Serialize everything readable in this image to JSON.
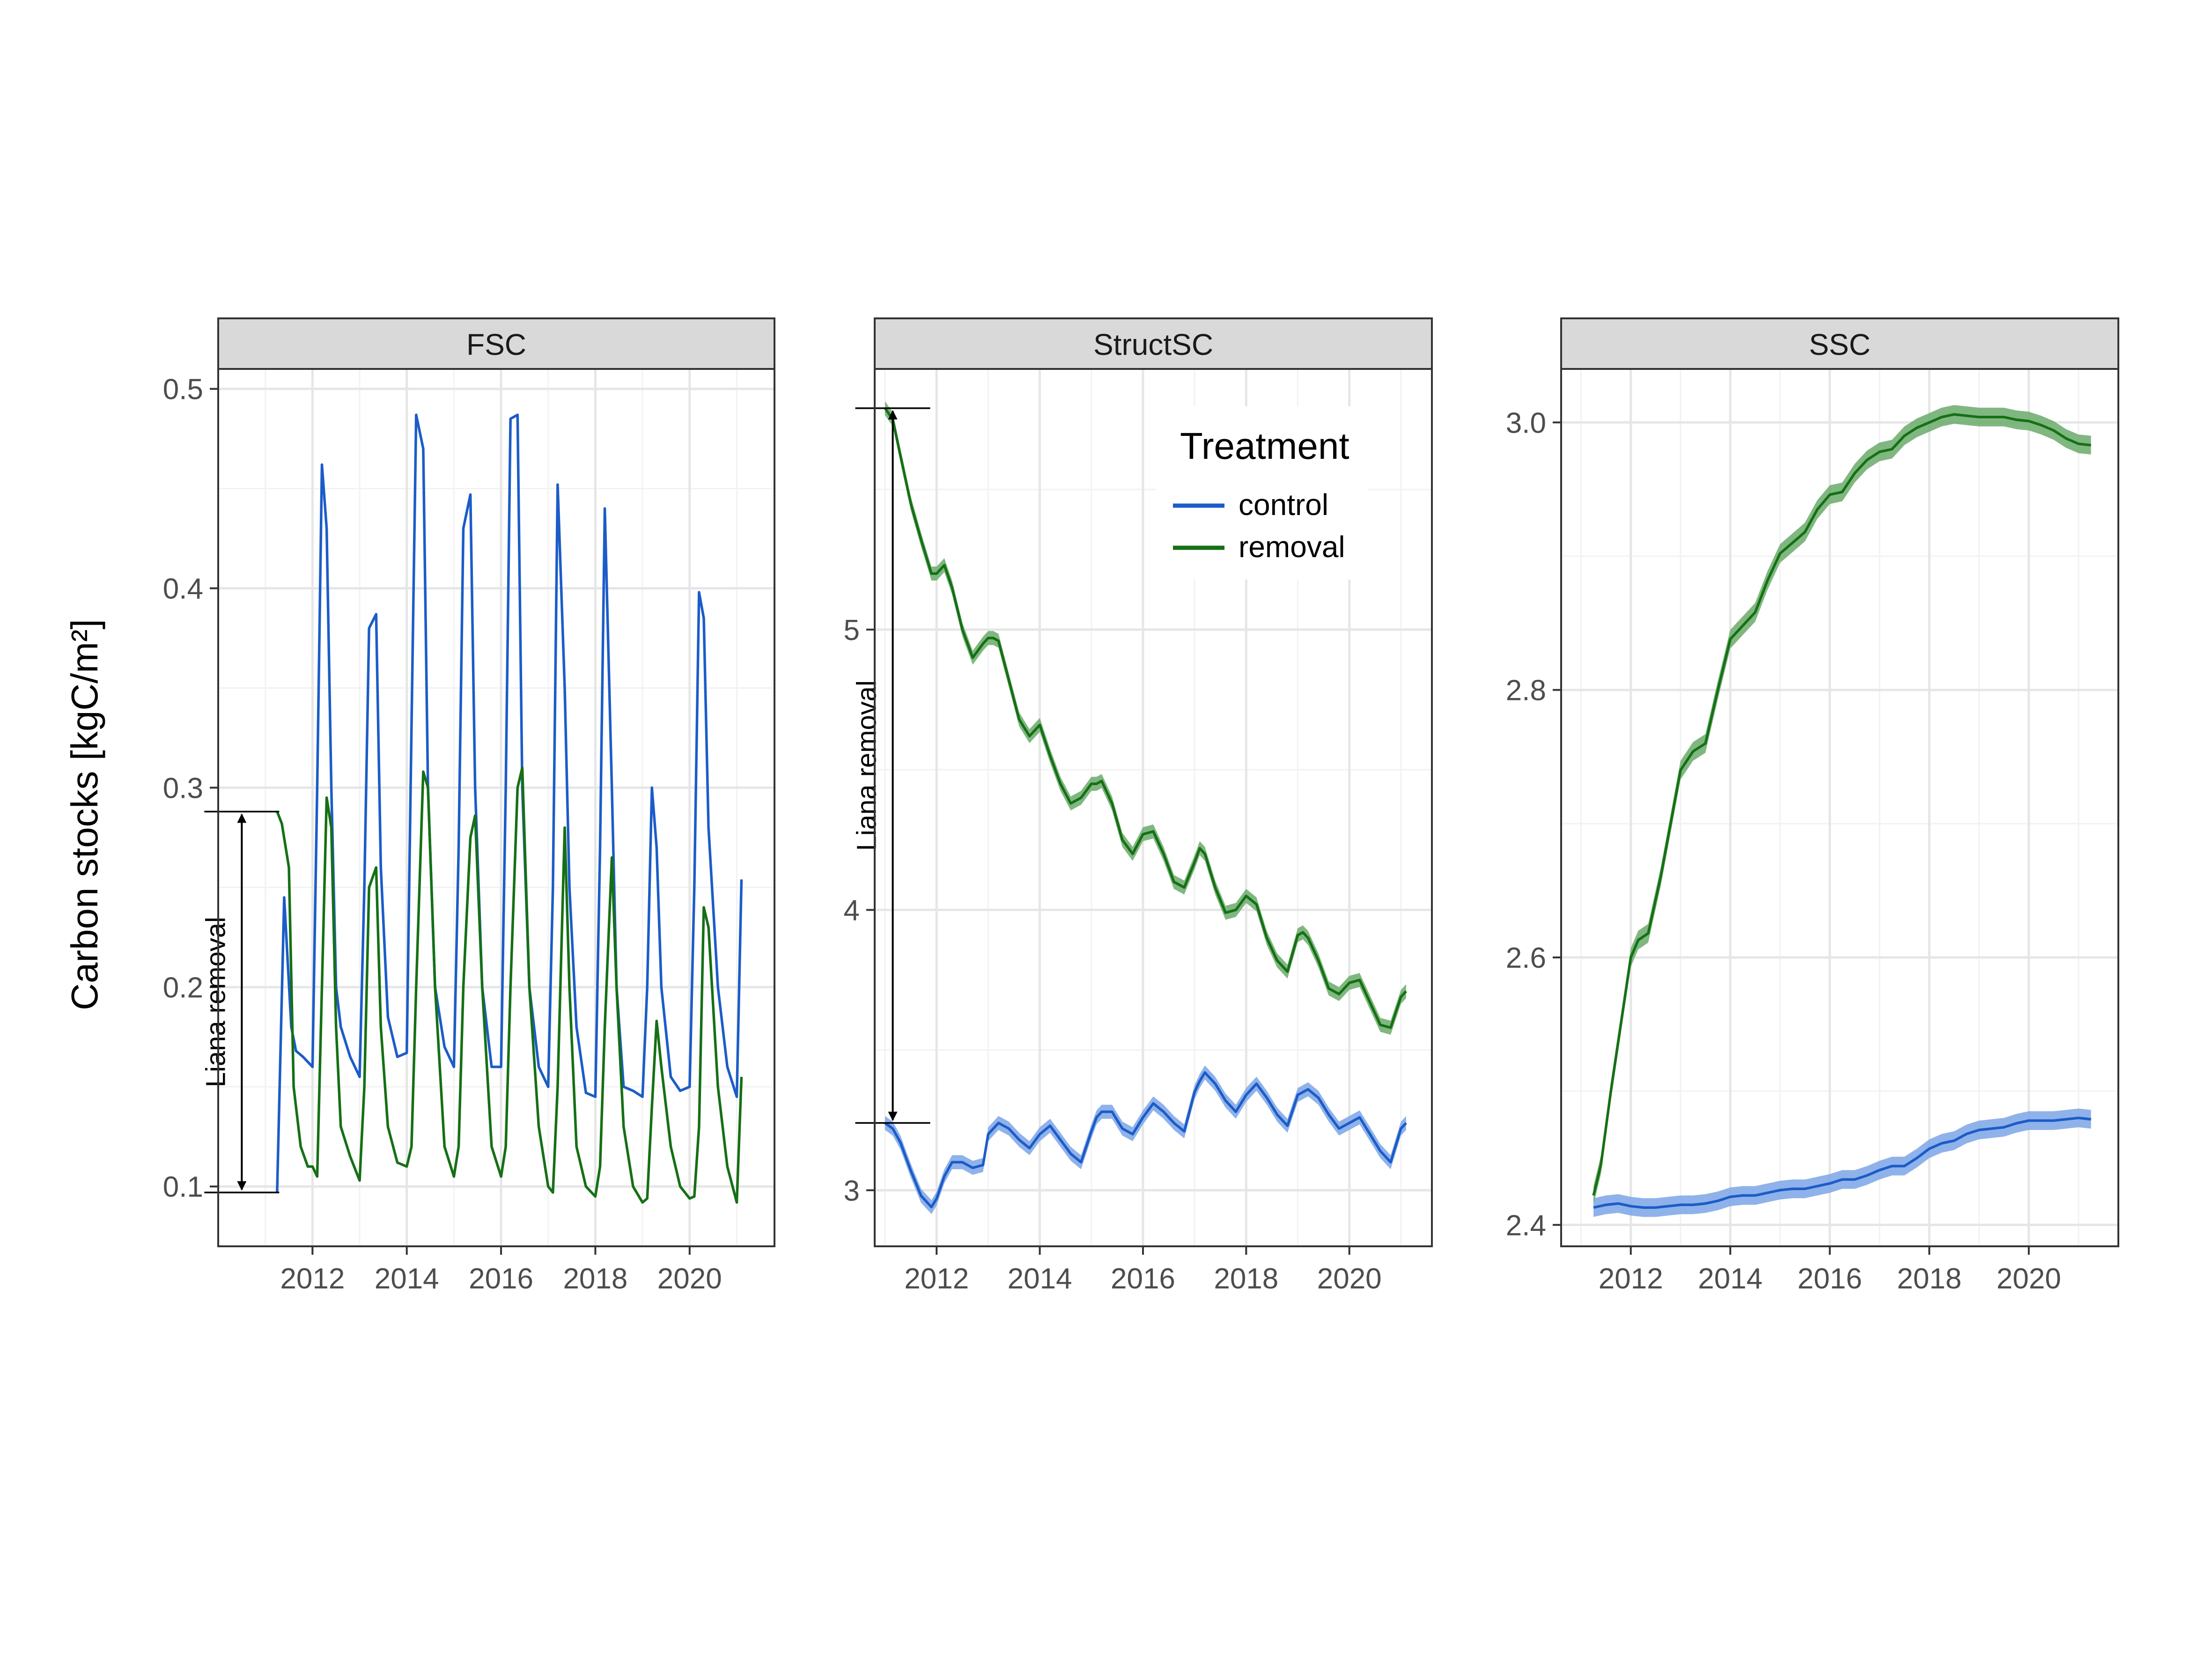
{
  "figure": {
    "ylabel": "Carbon stocks [kgC/m²]",
    "colors": {
      "control": "#1c5cc8",
      "removal": "#157015",
      "control_band": "#7ba5e6",
      "removal_band": "#6aaa6a"
    }
  },
  "legend": {
    "title": "Treatment",
    "items": [
      {
        "label": "control",
        "color": "#1c5cc8"
      },
      {
        "label": "removal",
        "color": "#157015"
      }
    ]
  },
  "chart_data": [
    {
      "type": "line",
      "strip": "FSC",
      "xlim": [
        2010.0,
        2021.8
      ],
      "ylim": [
        0.07,
        0.51
      ],
      "xticks": [
        2012,
        2014,
        2016,
        2018,
        2020
      ],
      "yticks": [
        0.1,
        0.2,
        0.3,
        0.4,
        0.5
      ],
      "ytick_labels": [
        "0.1",
        "0.2",
        "0.3",
        "0.4",
        "0.5"
      ],
      "annotation": {
        "text": "Liana removal",
        "x": 2010.5,
        "from": 0.097,
        "to": 0.288
      },
      "series": [
        {
          "name": "control",
          "x": [
            2011.25,
            2011.4,
            2011.55,
            2011.65,
            2011.8,
            2012.0,
            2012.1,
            2012.2,
            2012.3,
            2012.4,
            2012.5,
            2012.6,
            2012.8,
            2013.0,
            2013.1,
            2013.2,
            2013.35,
            2013.45,
            2013.6,
            2013.8,
            2014.0,
            2014.1,
            2014.2,
            2014.35,
            2014.45,
            2014.6,
            2014.8,
            2015.0,
            2015.1,
            2015.2,
            2015.35,
            2015.45,
            2015.6,
            2015.8,
            2016.0,
            2016.1,
            2016.2,
            2016.35,
            2016.45,
            2016.6,
            2016.8,
            2017.0,
            2017.1,
            2017.2,
            2017.35,
            2017.45,
            2017.6,
            2017.8,
            2018.0,
            2018.1,
            2018.2,
            2018.35,
            2018.45,
            2018.6,
            2018.8,
            2019.0,
            2019.1,
            2019.2,
            2019.3,
            2019.4,
            2019.6,
            2019.8,
            2020.0,
            2020.1,
            2020.2,
            2020.3,
            2020.4,
            2020.6,
            2020.8,
            2021.0,
            2021.1
          ],
          "values": [
            0.097,
            0.245,
            0.18,
            0.168,
            0.165,
            0.16,
            0.3,
            0.462,
            0.43,
            0.3,
            0.2,
            0.18,
            0.165,
            0.155,
            0.25,
            0.38,
            0.387,
            0.26,
            0.185,
            0.165,
            0.167,
            0.33,
            0.487,
            0.47,
            0.3,
            0.2,
            0.17,
            0.16,
            0.27,
            0.43,
            0.447,
            0.3,
            0.2,
            0.16,
            0.16,
            0.3,
            0.485,
            0.487,
            0.3,
            0.2,
            0.16,
            0.15,
            0.25,
            0.452,
            0.35,
            0.25,
            0.18,
            0.147,
            0.145,
            0.27,
            0.44,
            0.3,
            0.2,
            0.15,
            0.148,
            0.145,
            0.2,
            0.3,
            0.27,
            0.2,
            0.155,
            0.148,
            0.15,
            0.25,
            0.398,
            0.385,
            0.28,
            0.2,
            0.16,
            0.145,
            0.254
          ]
        },
        {
          "name": "removal",
          "x": [
            2011.25,
            2011.35,
            2011.5,
            2011.6,
            2011.75,
            2011.9,
            2012.0,
            2012.1,
            2012.2,
            2012.3,
            2012.4,
            2012.5,
            2012.6,
            2012.8,
            2013.0,
            2013.1,
            2013.2,
            2013.35,
            2013.45,
            2013.6,
            2013.8,
            2014.0,
            2014.1,
            2014.2,
            2014.35,
            2014.45,
            2014.6,
            2014.8,
            2015.0,
            2015.1,
            2015.2,
            2015.35,
            2015.45,
            2015.6,
            2015.8,
            2016.0,
            2016.1,
            2016.2,
            2016.35,
            2016.45,
            2016.6,
            2016.8,
            2017.0,
            2017.1,
            2017.2,
            2017.35,
            2017.45,
            2017.6,
            2017.8,
            2018.0,
            2018.1,
            2018.2,
            2018.35,
            2018.45,
            2018.6,
            2018.8,
            2019.0,
            2019.1,
            2019.2,
            2019.3,
            2019.4,
            2019.6,
            2019.8,
            2020.0,
            2020.1,
            2020.2,
            2020.3,
            2020.4,
            2020.6,
            2020.8,
            2021.0,
            2021.1
          ],
          "values": [
            0.288,
            0.282,
            0.26,
            0.15,
            0.12,
            0.11,
            0.11,
            0.105,
            0.2,
            0.295,
            0.28,
            0.18,
            0.13,
            0.115,
            0.103,
            0.15,
            0.25,
            0.26,
            0.18,
            0.13,
            0.112,
            0.11,
            0.12,
            0.2,
            0.308,
            0.3,
            0.2,
            0.12,
            0.105,
            0.12,
            0.2,
            0.275,
            0.286,
            0.2,
            0.12,
            0.105,
            0.12,
            0.2,
            0.3,
            0.31,
            0.2,
            0.13,
            0.1,
            0.097,
            0.15,
            0.28,
            0.2,
            0.12,
            0.1,
            0.095,
            0.11,
            0.18,
            0.265,
            0.2,
            0.13,
            0.1,
            0.092,
            0.094,
            0.14,
            0.183,
            0.16,
            0.12,
            0.1,
            0.094,
            0.095,
            0.13,
            0.24,
            0.23,
            0.15,
            0.11,
            0.092,
            0.155
          ]
        }
      ]
    },
    {
      "type": "line",
      "strip": "StructSC",
      "xlim": [
        2010.8,
        2021.6
      ],
      "ylim": [
        2.8,
        5.93
      ],
      "xticks": [
        2012,
        2014,
        2016,
        2018,
        2020
      ],
      "yticks": [
        3,
        4,
        5
      ],
      "ytick_labels": [
        "3",
        "4",
        "5"
      ],
      "annotation": {
        "text": "Liana removal",
        "x": 2011.15,
        "from": 3.24,
        "to": 5.79
      },
      "series": [
        {
          "name": "control",
          "x": [
            2011.0,
            2011.15,
            2011.3,
            2011.5,
            2011.7,
            2011.9,
            2012.0,
            2012.15,
            2012.3,
            2012.5,
            2012.7,
            2012.9,
            2013.0,
            2013.1,
            2013.2,
            2013.4,
            2013.6,
            2013.8,
            2014.0,
            2014.2,
            2014.4,
            2014.6,
            2014.8,
            2015.0,
            2015.1,
            2015.2,
            2015.4,
            2015.6,
            2015.8,
            2016.0,
            2016.2,
            2016.4,
            2016.6,
            2016.8,
            2017.0,
            2017.1,
            2017.2,
            2017.4,
            2017.6,
            2017.8,
            2018.0,
            2018.2,
            2018.4,
            2018.6,
            2018.8,
            2019.0,
            2019.1,
            2019.2,
            2019.4,
            2019.6,
            2019.8,
            2020.0,
            2020.2,
            2020.4,
            2020.6,
            2020.8,
            2021.0,
            2021.1
          ],
          "values": [
            3.24,
            3.22,
            3.17,
            3.07,
            2.98,
            2.94,
            2.97,
            3.05,
            3.1,
            3.1,
            3.08,
            3.09,
            3.2,
            3.22,
            3.24,
            3.22,
            3.18,
            3.15,
            3.2,
            3.23,
            3.18,
            3.13,
            3.1,
            3.21,
            3.26,
            3.28,
            3.28,
            3.22,
            3.2,
            3.26,
            3.31,
            3.28,
            3.24,
            3.21,
            3.35,
            3.39,
            3.42,
            3.38,
            3.32,
            3.28,
            3.34,
            3.38,
            3.33,
            3.27,
            3.23,
            3.34,
            3.35,
            3.36,
            3.33,
            3.27,
            3.22,
            3.24,
            3.26,
            3.2,
            3.14,
            3.1,
            3.22,
            3.24
          ]
        },
        {
          "name": "removal",
          "x": [
            2011.0,
            2011.15,
            2011.3,
            2011.5,
            2011.7,
            2011.9,
            2012.0,
            2012.15,
            2012.3,
            2012.5,
            2012.7,
            2012.9,
            2013.0,
            2013.1,
            2013.2,
            2013.4,
            2013.6,
            2013.8,
            2014.0,
            2014.2,
            2014.4,
            2014.6,
            2014.8,
            2015.0,
            2015.1,
            2015.2,
            2015.4,
            2015.6,
            2015.8,
            2016.0,
            2016.2,
            2016.4,
            2016.6,
            2016.8,
            2017.0,
            2017.1,
            2017.2,
            2017.4,
            2017.6,
            2017.8,
            2018.0,
            2018.2,
            2018.4,
            2018.6,
            2018.8,
            2019.0,
            2019.1,
            2019.2,
            2019.4,
            2019.6,
            2019.8,
            2020.0,
            2020.2,
            2020.4,
            2020.6,
            2020.8,
            2021.0,
            2021.1
          ],
          "values": [
            5.79,
            5.75,
            5.62,
            5.45,
            5.32,
            5.2,
            5.2,
            5.23,
            5.15,
            5.0,
            4.9,
            4.95,
            4.97,
            4.97,
            4.96,
            4.82,
            4.68,
            4.62,
            4.66,
            4.55,
            4.45,
            4.38,
            4.4,
            4.45,
            4.45,
            4.46,
            4.38,
            4.25,
            4.2,
            4.27,
            4.28,
            4.2,
            4.1,
            4.08,
            4.17,
            4.22,
            4.2,
            4.08,
            3.99,
            4.0,
            4.05,
            4.02,
            3.9,
            3.82,
            3.78,
            3.91,
            3.92,
            3.9,
            3.82,
            3.72,
            3.7,
            3.74,
            3.75,
            3.67,
            3.59,
            3.58,
            3.69,
            3.71
          ]
        }
      ]
    },
    {
      "type": "line",
      "strip": "SSC",
      "xlim": [
        2010.6,
        2021.8
      ],
      "ylim": [
        2.384,
        3.04
      ],
      "xticks": [
        2012,
        2014,
        2016,
        2018,
        2020
      ],
      "yticks": [
        2.4,
        2.6,
        2.8,
        3.0
      ],
      "ytick_labels": [
        "2.4",
        "2.6",
        "2.8",
        "3.0"
      ],
      "series": [
        {
          "name": "control",
          "x": [
            2011.25,
            2011.5,
            2011.75,
            2012.0,
            2012.25,
            2012.5,
            2012.75,
            2013.0,
            2013.25,
            2013.5,
            2013.75,
            2014.0,
            2014.25,
            2014.5,
            2014.75,
            2015.0,
            2015.25,
            2015.5,
            2015.75,
            2016.0,
            2016.25,
            2016.5,
            2016.75,
            2017.0,
            2017.25,
            2017.5,
            2017.75,
            2018.0,
            2018.25,
            2018.5,
            2018.75,
            2019.0,
            2019.25,
            2019.5,
            2019.75,
            2020.0,
            2020.25,
            2020.5,
            2020.75,
            2021.0,
            2021.25
          ],
          "values": [
            2.413,
            2.415,
            2.416,
            2.414,
            2.413,
            2.413,
            2.414,
            2.415,
            2.415,
            2.416,
            2.418,
            2.421,
            2.422,
            2.422,
            2.424,
            2.426,
            2.427,
            2.427,
            2.429,
            2.431,
            2.434,
            2.434,
            2.437,
            2.441,
            2.444,
            2.444,
            2.45,
            2.457,
            2.461,
            2.463,
            2.468,
            2.471,
            2.472,
            2.473,
            2.476,
            2.478,
            2.478,
            2.478,
            2.479,
            2.48,
            2.479
          ]
        },
        {
          "name": "removal",
          "x": [
            2011.25,
            2011.4,
            2011.6,
            2011.8,
            2012.0,
            2012.15,
            2012.35,
            2012.6,
            2012.8,
            2013.0,
            2013.25,
            2013.5,
            2013.75,
            2014.0,
            2014.25,
            2014.5,
            2014.75,
            2015.0,
            2015.25,
            2015.5,
            2015.75,
            2016.0,
            2016.25,
            2016.5,
            2016.75,
            2017.0,
            2017.25,
            2017.5,
            2017.75,
            2018.0,
            2018.25,
            2018.5,
            2018.75,
            2019.0,
            2019.25,
            2019.5,
            2019.75,
            2020.0,
            2020.25,
            2020.5,
            2020.75,
            2021.0,
            2021.25
          ],
          "values": [
            2.422,
            2.445,
            2.5,
            2.55,
            2.6,
            2.613,
            2.618,
            2.66,
            2.7,
            2.74,
            2.754,
            2.76,
            2.8,
            2.838,
            2.848,
            2.858,
            2.882,
            2.902,
            2.91,
            2.918,
            2.935,
            2.946,
            2.948,
            2.962,
            2.972,
            2.978,
            2.98,
            2.99,
            2.996,
            3.0,
            3.004,
            3.006,
            3.005,
            3.004,
            3.004,
            3.004,
            3.002,
            3.001,
            2.998,
            2.994,
            2.988,
            2.984,
            2.983
          ]
        }
      ]
    }
  ]
}
